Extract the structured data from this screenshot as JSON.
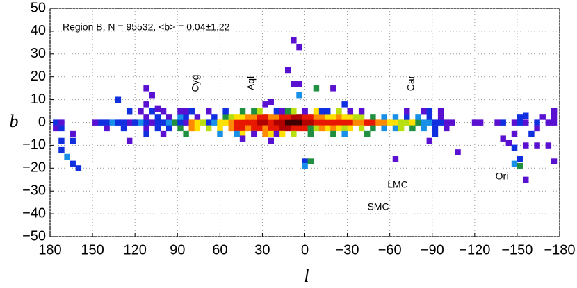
{
  "chart_data": {
    "type": "heatmap",
    "xlabel": "l",
    "ylabel": "b",
    "xlim": [
      180,
      -180
    ],
    "xticks": [
      180,
      150,
      120,
      90,
      60,
      30,
      0,
      {
        "value": -30,
        "label": "−30"
      },
      {
        "value": -60,
        "label": "−60"
      },
      {
        "value": -90,
        "label": "−90"
      },
      {
        "value": -120,
        "label": "−120"
      },
      {
        "value": -150,
        "label": "−150"
      },
      {
        "value": -180,
        "label": "−180"
      }
    ],
    "ylim": [
      -50,
      50
    ],
    "yticks": [
      {
        "value": -50,
        "label": "−50"
      },
      {
        "value": -40,
        "label": "−40"
      },
      {
        "value": -30,
        "label": "−30"
      },
      {
        "value": -20,
        "label": "−20"
      },
      {
        "value": -10,
        "label": "−10"
      },
      0,
      10,
      20,
      30,
      40,
      50
    ],
    "grid": true,
    "palette": [
      "#5a10d0",
      "#1030e0",
      "#1890e8",
      "#209040",
      "#b8e010",
      "#ffe000",
      "#ff8a00",
      "#e81800",
      "#b00000",
      "#400000"
    ],
    "annotations": [
      "Region B, N = 95532, <b> =  0.04±1.22",
      "Cyg",
      "Aql",
      "Car",
      "LMC",
      "SMC",
      "Ori"
    ],
    "cells": {
      "l": [
        176,
        172,
        148,
        144,
        140,
        136,
        132,
        128,
        124,
        120,
        116,
        112,
        108,
        104,
        100,
        96,
        92,
        88,
        84,
        80,
        76,
        72,
        68,
        64,
        60,
        56,
        52,
        48,
        44,
        40,
        36,
        32,
        28,
        24,
        20,
        16,
        12,
        8,
        4,
        0,
        -4,
        -8,
        -12,
        -16,
        -20,
        -24,
        -28,
        -32,
        -36,
        -40,
        -44,
        -48,
        -52,
        -56,
        -60,
        -64,
        -68,
        -72,
        -76,
        -80,
        -84,
        -88,
        -92,
        -96,
        -100,
        -104,
        -120,
        -124,
        -136,
        -140,
        -148,
        -152,
        -156,
        -164,
        -172,
        -176,
        112,
        104,
        96,
        88,
        84,
        76,
        64,
        56,
        52,
        48,
        44,
        40,
        36,
        32,
        28,
        24,
        20,
        16,
        12,
        8,
        4,
        0,
        -4,
        -8,
        -12,
        -16,
        -20,
        -24,
        -28,
        -32,
        -36,
        -40,
        -48,
        -56,
        -64,
        -72,
        -80,
        -88,
        -96,
        -152,
        -168,
        -176,
        176,
        172,
        140,
        128,
        112,
        104,
        96,
        88,
        80,
        76,
        68,
        60,
        52,
        48,
        44,
        40,
        36,
        32,
        28,
        24,
        20,
        16,
        12,
        8,
        4,
        0,
        -4,
        -8,
        -12,
        -16,
        -20,
        -24,
        -28,
        -32,
        -40,
        -48,
        -56,
        -64,
        -68,
        -76,
        -84,
        -92,
        -100,
        -164,
        124,
        116,
        108,
        100,
        88,
        84,
        80,
        68,
        56,
        44,
        36,
        32,
        20,
        16,
        12,
        8,
        0,
        -8,
        -12,
        -16,
        -24,
        -32,
        -40,
        -72,
        -84,
        -88,
        -96,
        -176,
        164,
        112,
        100,
        84,
        60,
        48,
        44,
        36,
        28,
        24,
        16,
        8,
        -4,
        -20,
        -28,
        -44,
        -92,
        -148,
        -160,
        172,
        164,
        168,
        164,
        160,
        172,
        132,
        112,
        108,
        112,
        104,
        124,
        44,
        36,
        24,
        20,
        28,
        24,
        8,
        4,
        4,
        -8,
        -20,
        8,
        4,
        12,
        0,
        0,
        -4,
        -28,
        -64,
        -88,
        -108,
        -140,
        -144,
        -148,
        -152,
        -148,
        -152,
        -156,
        -164,
        -172,
        -176,
        -176,
        -156,
        -156
      ],
      "b": [
        0,
        0,
        0,
        0,
        0,
        0,
        0,
        0,
        0,
        0,
        0,
        0,
        0,
        0,
        0,
        0,
        0,
        0,
        0,
        0,
        0,
        0,
        0,
        0,
        0,
        0,
        0,
        0,
        0,
        0,
        0,
        0,
        0,
        0,
        0,
        0,
        0,
        0,
        0,
        0,
        0,
        0,
        0,
        0,
        0,
        0,
        0,
        0,
        0,
        0,
        0,
        0,
        0,
        0,
        0,
        0,
        0,
        0,
        0,
        0,
        0,
        0,
        0,
        0,
        0,
        0,
        0,
        0,
        0,
        0,
        0,
        0,
        0,
        0,
        0,
        0,
        2.5,
        2.5,
        2.5,
        2.5,
        2.5,
        2.5,
        2.5,
        2.5,
        2.5,
        2.5,
        2.5,
        2.5,
        2.5,
        2.5,
        2.5,
        2.5,
        2.5,
        2.5,
        2.5,
        2.5,
        2.5,
        2.5,
        2.5,
        2.5,
        2.5,
        2.5,
        2.5,
        2.5,
        2.5,
        2.5,
        2.5,
        2.5,
        2.5,
        2.5,
        2.5,
        2.5,
        2.5,
        2.5,
        2.5,
        2.5,
        2.5,
        2.5,
        -2.5,
        -2.5,
        -2.5,
        -2.5,
        -2.5,
        -2.5,
        -2.5,
        -2.5,
        -2.5,
        -2.5,
        -2.5,
        -2.5,
        -2.5,
        -2.5,
        -2.5,
        -2.5,
        -2.5,
        -2.5,
        -2.5,
        -2.5,
        -2.5,
        -2.5,
        -2.5,
        -2.5,
        -2.5,
        -2.5,
        -2.5,
        -2.5,
        -2.5,
        -2.5,
        -2.5,
        -2.5,
        -2.5,
        -2.5,
        -2.5,
        -2.5,
        -2.5,
        -2.5,
        -2.5,
        -2.5,
        -2.5,
        -2.5,
        -2.5,
        -2.5,
        5,
        5,
        5,
        5,
        5,
        5,
        5,
        5,
        5,
        5,
        5,
        5,
        5,
        5,
        5,
        5,
        5,
        5,
        5,
        5,
        5,
        5,
        5,
        5,
        5,
        5,
        5,
        5,
        -5,
        -5,
        -5,
        -5,
        -5,
        -5,
        -5,
        -5,
        -5,
        -5,
        -5,
        -5,
        -5,
        -5,
        -5,
        -5,
        -5,
        -5,
        -5,
        -8,
        -8,
        -15,
        -18,
        -20,
        -12,
        10,
        15,
        12,
        8,
        6,
        -8,
        -7,
        -5,
        -8,
        -5,
        8,
        9,
        17,
        17,
        12,
        15,
        15,
        36,
        33,
        23,
        -17,
        -19,
        -17,
        8,
        -16,
        -8,
        -13,
        -7,
        -9,
        -11,
        -16,
        -18,
        -19,
        -10,
        -10,
        -10,
        -17,
        5,
        -25,
        3
      ],
      "level": [
        2,
        1,
        1,
        2,
        2,
        3,
        2,
        2,
        1,
        2,
        3,
        2,
        1,
        2,
        2,
        3,
        4,
        2,
        1,
        7,
        6,
        5,
        2,
        3,
        6,
        6,
        7,
        8,
        8,
        8,
        8,
        9,
        9,
        8,
        9,
        9,
        10,
        10,
        10,
        9,
        9,
        8,
        8,
        8,
        8,
        8,
        8,
        8,
        7,
        7,
        8,
        8,
        7,
        7,
        6,
        6,
        5,
        5,
        6,
        4,
        3,
        3,
        2,
        2,
        1,
        1,
        1,
        1,
        1,
        2,
        1,
        2,
        1,
        2,
        1,
        1,
        1,
        2,
        1,
        3,
        2,
        1,
        2,
        4,
        5,
        6,
        6,
        7,
        7,
        8,
        8,
        7,
        7,
        8,
        8,
        9,
        9,
        8,
        8,
        7,
        7,
        6,
        6,
        7,
        6,
        6,
        5,
        5,
        4,
        3,
        3,
        2,
        3,
        2,
        1,
        2,
        1,
        1,
        1,
        2,
        1,
        2,
        1,
        2,
        2,
        4,
        7,
        6,
        5,
        6,
        7,
        8,
        8,
        7,
        8,
        8,
        7,
        8,
        8,
        9,
        9,
        8,
        8,
        8,
        4,
        5,
        7,
        6,
        7,
        6,
        5,
        6,
        5,
        4,
        3,
        3,
        5,
        4,
        3,
        2,
        1,
        1,
        2,
        1,
        2,
        1,
        1,
        1,
        2,
        1,
        2,
        4,
        4,
        5,
        2,
        1,
        4,
        5,
        1,
        6,
        2,
        2,
        5,
        1,
        1,
        1,
        1,
        2,
        1,
        1,
        1,
        2,
        1,
        4,
        3,
        3,
        6,
        5,
        7,
        6,
        6,
        5,
        4,
        4,
        3,
        4,
        2,
        1,
        2,
        2,
        2,
        3,
        2,
        2,
        2,
        2,
        1,
        1,
        1,
        1,
        1,
        1,
        1,
        1,
        1,
        1,
        1,
        1,
        1,
        3,
        4,
        1,
        1,
        1,
        1,
        2,
        3,
        4,
        2,
        1,
        1,
        1,
        1,
        1,
        2,
        2,
        3,
        4,
        1,
        1,
        1,
        1,
        1,
        1,
        2
      ]
    }
  }
}
